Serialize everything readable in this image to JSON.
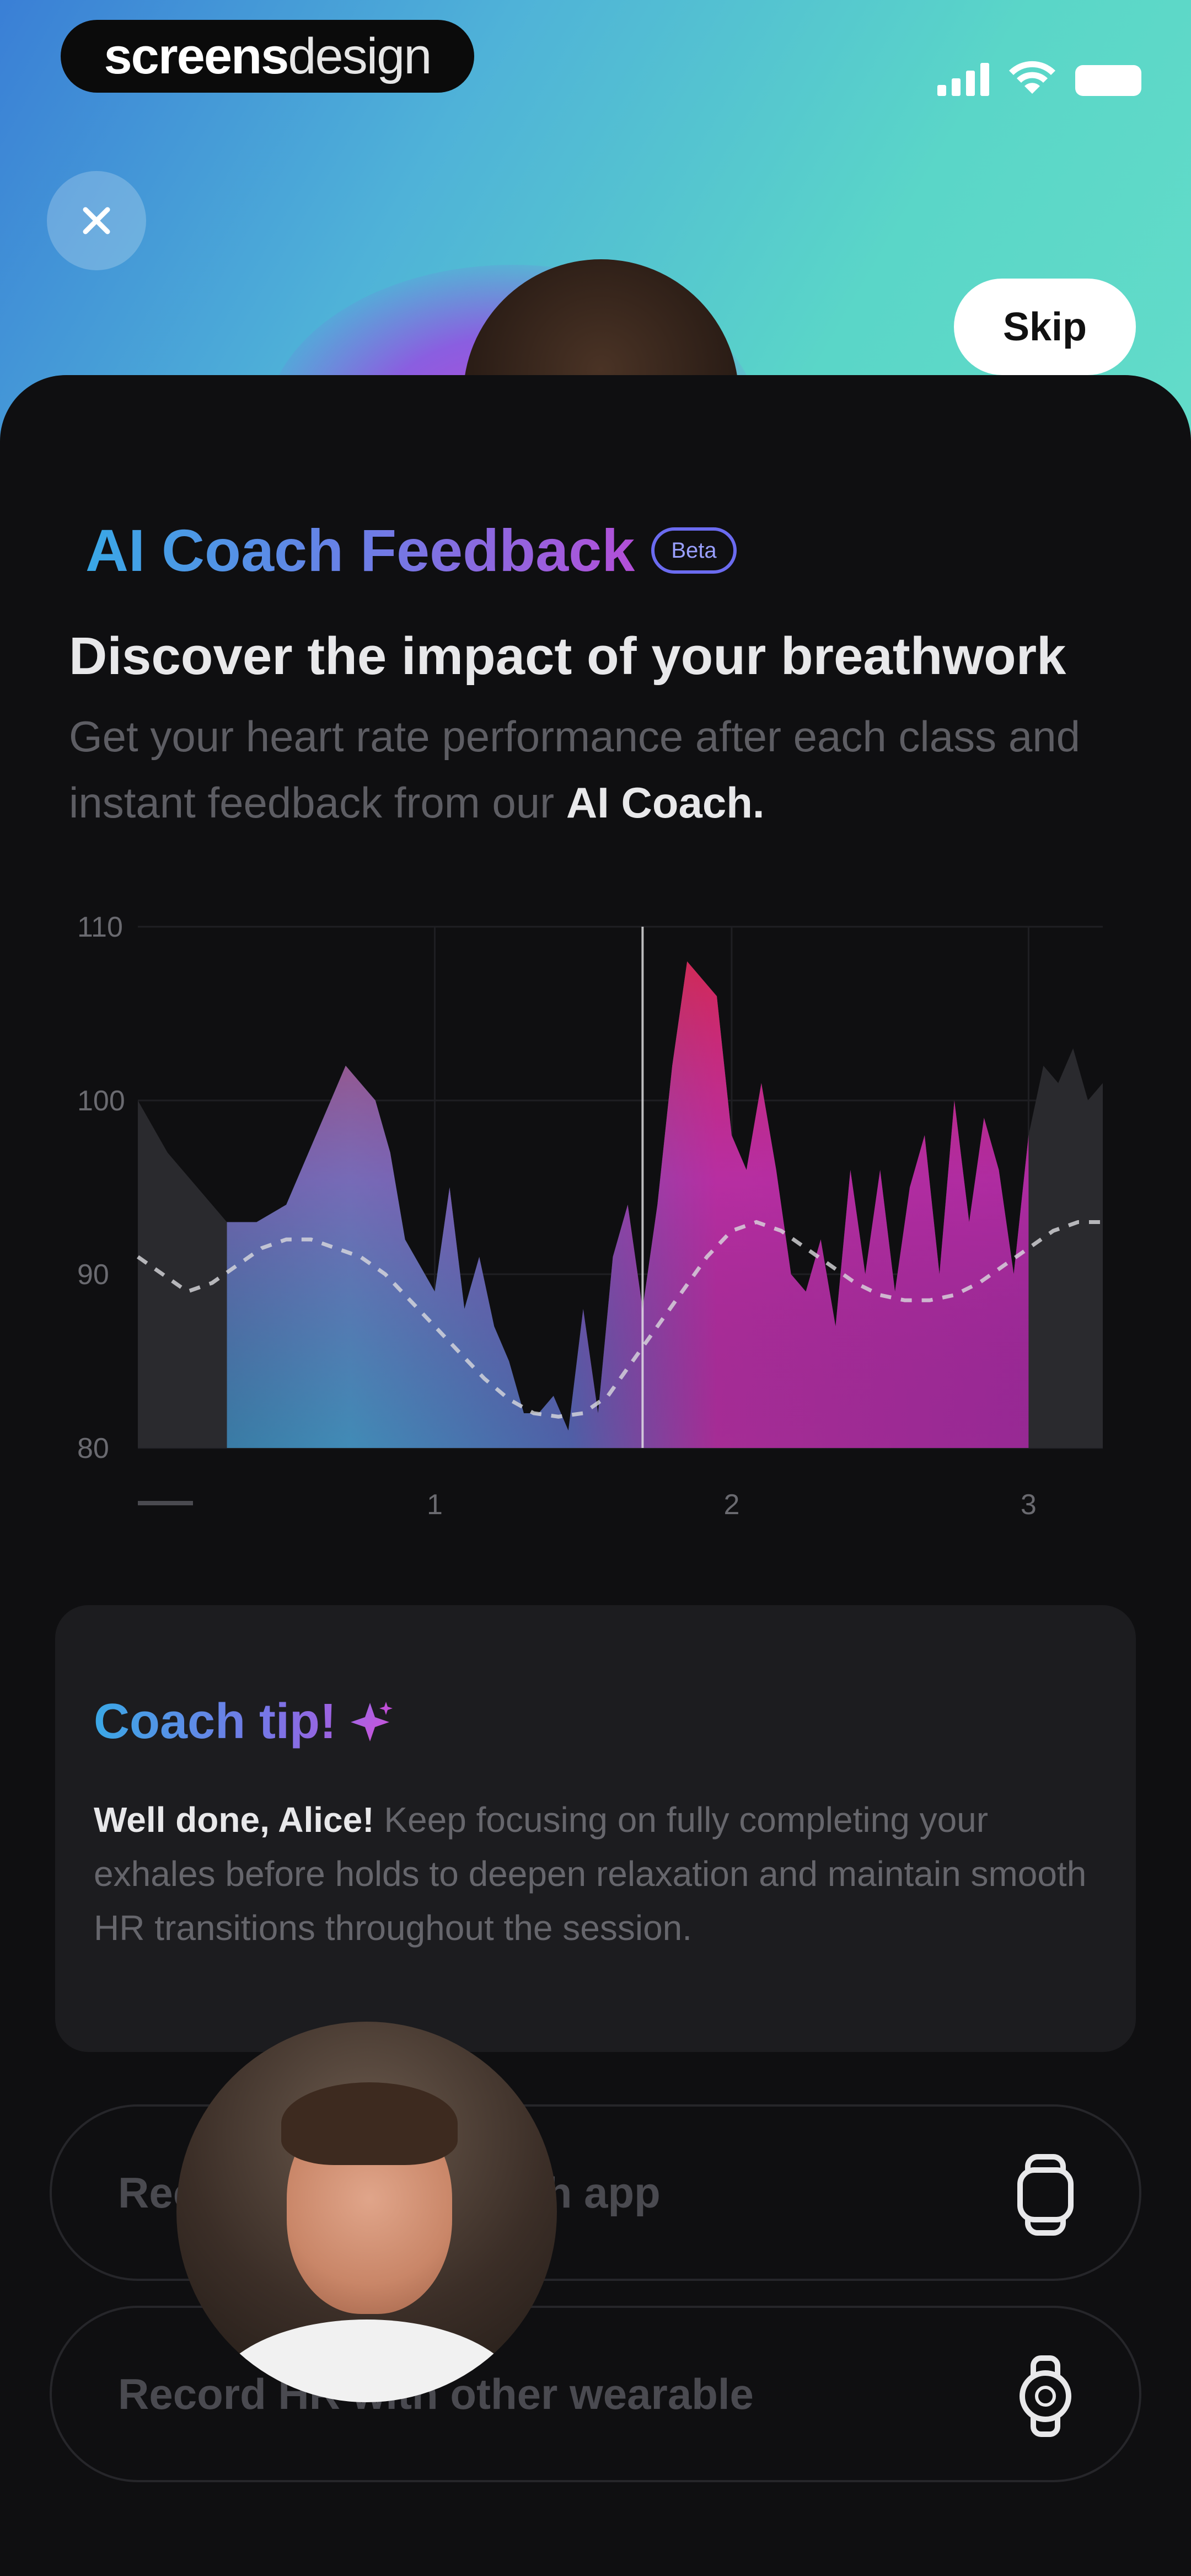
{
  "brand": {
    "bold": "screens",
    "light": "design"
  },
  "header": {
    "skip_label": "Skip"
  },
  "feedback": {
    "title": "AI Coach Feedback",
    "badge": "Beta",
    "headline": "Discover the impact of your breathwork",
    "sub_prefix": "Get your heart rate performance after each class and instant feedback from our",
    "sub_bold": "AI Coach."
  },
  "chart_data": {
    "type": "area",
    "y_ticks": [
      "110",
      "100",
      "90",
      "80"
    ],
    "ylim": [
      80,
      110
    ],
    "x_ticks": [
      "1",
      "2",
      "3"
    ],
    "x_start_label": "",
    "grid": true,
    "x": [
      0,
      0.1,
      0.2,
      0.3,
      0.35,
      0.4,
      0.5,
      0.6,
      0.7,
      0.75,
      0.8,
      0.85,
      0.9,
      1.0,
      1.05,
      1.1,
      1.15,
      1.2,
      1.25,
      1.3,
      1.35,
      1.4,
      1.45,
      1.5,
      1.55,
      1.6,
      1.65,
      1.7,
      1.75,
      1.8,
      1.85,
      1.9,
      1.95,
      2.0,
      2.05,
      2.1,
      2.15,
      2.2,
      2.25,
      2.3,
      2.35,
      2.4,
      2.45,
      2.5,
      2.55,
      2.6,
      2.65,
      2.7,
      2.75,
      2.8,
      2.85,
      2.9,
      2.95,
      3.0,
      3.05,
      3.1,
      3.15,
      3.2,
      3.25
    ],
    "heart_rate": [
      100,
      97,
      95,
      93,
      93,
      93,
      94,
      98,
      102,
      101,
      100,
      97,
      92,
      89,
      95,
      88,
      91,
      87,
      85,
      82,
      82,
      83,
      81,
      88,
      82,
      91,
      94,
      88,
      94,
      102,
      108,
      107,
      106,
      98,
      96,
      101,
      96,
      90,
      89,
      92,
      87,
      96,
      90,
      96,
      89,
      95,
      98,
      90,
      100,
      93,
      99,
      96,
      90,
      98,
      102,
      101,
      103,
      100,
      101
    ],
    "baseline": [
      91,
      90,
      89,
      89.5,
      90.5,
      91.5,
      92,
      92,
      91.5,
      91,
      90,
      88.5,
      87,
      85.5,
      84,
      82.8,
      82,
      81.8,
      82,
      83,
      85,
      87,
      89,
      91,
      92.5,
      93,
      92.5,
      91.5,
      90.5,
      89.5,
      88.8,
      88.5,
      88.5,
      88.8,
      89.5,
      90.5,
      91.5,
      92.5,
      93,
      93
    ],
    "active_start": 0.3,
    "active_end": 3.0,
    "marker_x": 1.7,
    "colors": {
      "cool": "#3aa3c9",
      "hot": "#e3243a",
      "magenta": "#c02ba8",
      "muted": "#2a2a2e"
    }
  },
  "tip": {
    "title": "Coach tip!",
    "bold": "Well done, Alice!",
    "text": "Keep focusing on fully completing your exhales before holds to deepen relaxation and maintain smooth HR transitions throughout the session."
  },
  "options": [
    {
      "label": "Record HR with watch app",
      "icon": "watch-icon"
    },
    {
      "label": "Record HR with other wearable",
      "icon": "smartwatch-icon"
    }
  ]
}
